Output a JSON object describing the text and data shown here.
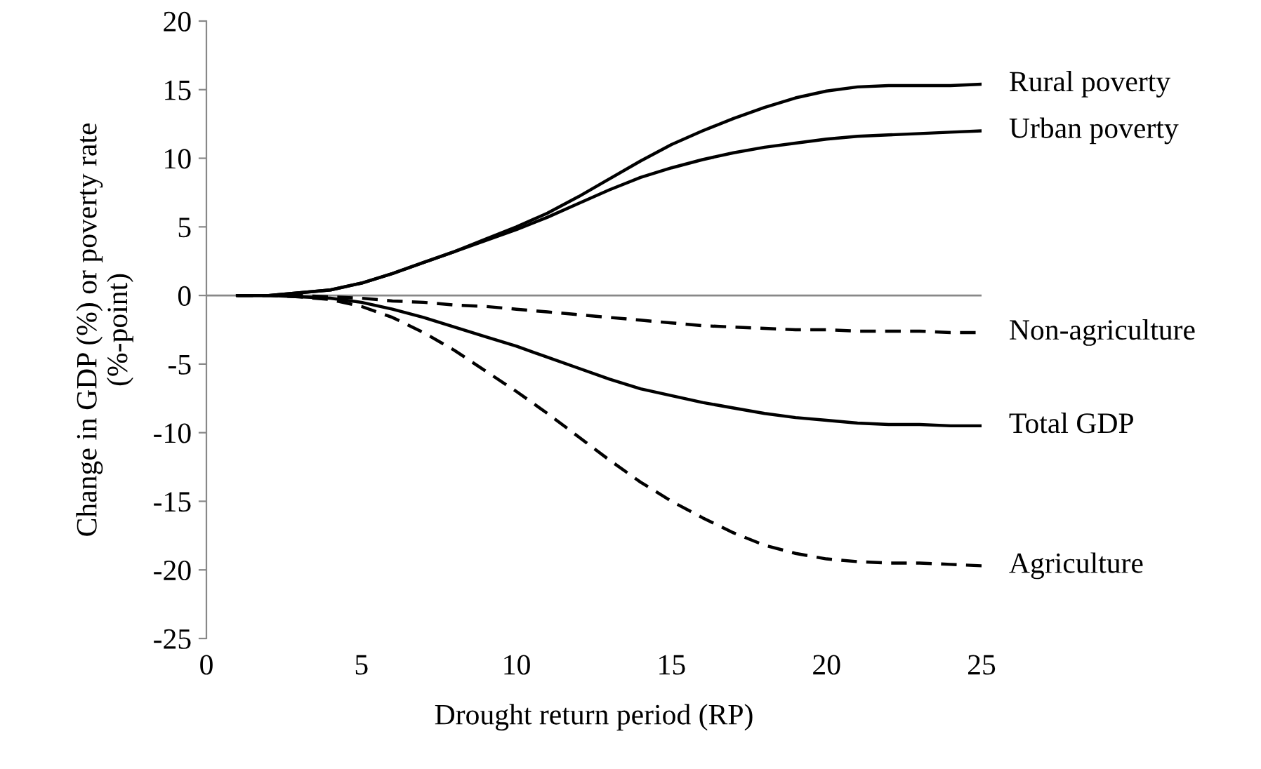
{
  "chart_data": {
    "type": "line",
    "xlabel": "Drought return period (RP)",
    "ylabel": "Change in GDP (%) or poverty rate\n(%-point)",
    "x": [
      1,
      2,
      3,
      4,
      5,
      6,
      7,
      8,
      9,
      10,
      11,
      12,
      13,
      14,
      15,
      16,
      17,
      18,
      19,
      20,
      21,
      22,
      23,
      24,
      25
    ],
    "xlim": [
      0,
      25
    ],
    "xticks": [
      0,
      5,
      10,
      15,
      20,
      25
    ],
    "ylim": [
      -25,
      20
    ],
    "yticks": [
      -25,
      -20,
      -15,
      -10,
      -5,
      0,
      5,
      10,
      15,
      20
    ],
    "grid": false,
    "legend": false,
    "marker": "none",
    "ref_lines": [
      {
        "axis": "y",
        "value": 0,
        "color": "#888888"
      }
    ],
    "series": [
      {
        "name": "Rural poverty",
        "color": "#000000",
        "line_style": "solid",
        "values": [
          0,
          0,
          0.2,
          0.4,
          0.9,
          1.6,
          2.4,
          3.2,
          4.1,
          5.0,
          6.0,
          7.2,
          8.5,
          9.8,
          11.0,
          12.0,
          12.9,
          13.7,
          14.4,
          14.9,
          15.2,
          15.3,
          15.3,
          15.3,
          15.4
        ]
      },
      {
        "name": "Urban poverty",
        "color": "#000000",
        "line_style": "solid",
        "values": [
          0,
          0,
          0.2,
          0.4,
          0.9,
          1.6,
          2.4,
          3.2,
          4.0,
          4.8,
          5.7,
          6.7,
          7.7,
          8.6,
          9.3,
          9.9,
          10.4,
          10.8,
          11.1,
          11.4,
          11.6,
          11.7,
          11.8,
          11.9,
          12.0
        ]
      },
      {
        "name": "Non-agriculture",
        "color": "#000000",
        "line_style": "dashed",
        "values": [
          0,
          0,
          0,
          -0.1,
          -0.2,
          -0.4,
          -0.5,
          -0.7,
          -0.8,
          -1.0,
          -1.2,
          -1.4,
          -1.6,
          -1.8,
          -2.0,
          -2.2,
          -2.3,
          -2.4,
          -2.5,
          -2.5,
          -2.6,
          -2.6,
          -2.6,
          -2.7,
          -2.7
        ]
      },
      {
        "name": "Total GDP",
        "color": "#000000",
        "line_style": "solid",
        "values": [
          0,
          0,
          -0.1,
          -0.2,
          -0.5,
          -1.0,
          -1.6,
          -2.3,
          -3.0,
          -3.7,
          -4.5,
          -5.3,
          -6.1,
          -6.8,
          -7.3,
          -7.8,
          -8.2,
          -8.6,
          -8.9,
          -9.1,
          -9.3,
          -9.4,
          -9.4,
          -9.5,
          -9.5
        ]
      },
      {
        "name": "Agriculture",
        "color": "#000000",
        "line_style": "dashed",
        "values": [
          0,
          0,
          -0.1,
          -0.3,
          -0.8,
          -1.6,
          -2.7,
          -4.0,
          -5.5,
          -7.0,
          -8.6,
          -10.3,
          -12.0,
          -13.6,
          -15.0,
          -16.2,
          -17.3,
          -18.2,
          -18.8,
          -19.2,
          -19.4,
          -19.5,
          -19.5,
          -19.6,
          -19.7
        ]
      }
    ]
  }
}
